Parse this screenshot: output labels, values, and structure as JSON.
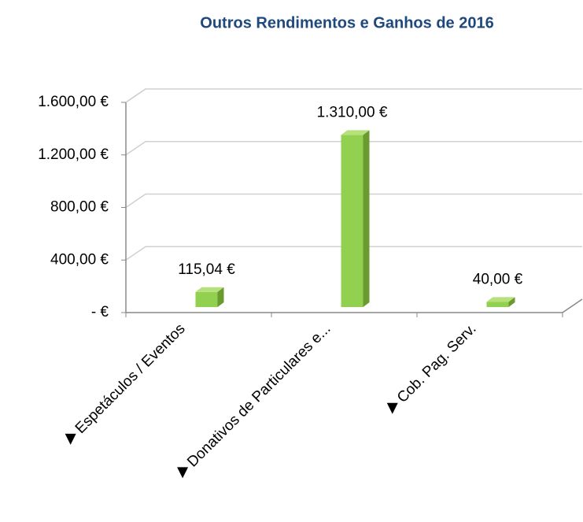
{
  "chart_data": {
    "type": "bar",
    "title": "Outros Rendimentos e Ganhos de 2016",
    "categories": [
      "Espetáculos / Eventos",
      "Donativos de Particulares e...",
      "Cob. Pag. Serv."
    ],
    "values": [
      115.04,
      1310,
      40
    ],
    "value_labels": [
      "115,04 €",
      "1.310,00 €",
      "40,00 €"
    ],
    "color": "#92d050",
    "ylim": [
      0,
      1600
    ],
    "yticks": [
      {
        "value": 0,
        "label": "-   €"
      },
      {
        "value": 400,
        "label": "400,00 €"
      },
      {
        "value": 800,
        "label": "800,00 €"
      },
      {
        "value": 1200,
        "label": "1.200,00 €"
      },
      {
        "value": 1600,
        "label": "1.600,00 €"
      }
    ],
    "grid": true
  }
}
